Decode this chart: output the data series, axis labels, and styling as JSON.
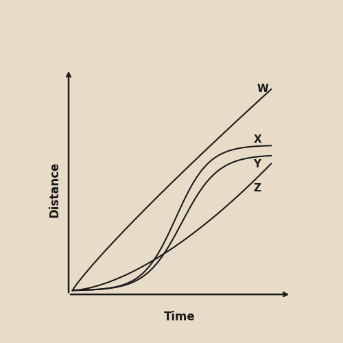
{
  "xlabel": "Time",
  "ylabel": "Distance",
  "background_color": "#e8dcc8",
  "line_color": "#1a1a1a",
  "label_W": "W",
  "label_X": "X",
  "label_Y": "Y",
  "label_Z": "Z",
  "font_size_axis_label": 12,
  "font_size_curve_label": 11,
  "line_width": 1.5
}
